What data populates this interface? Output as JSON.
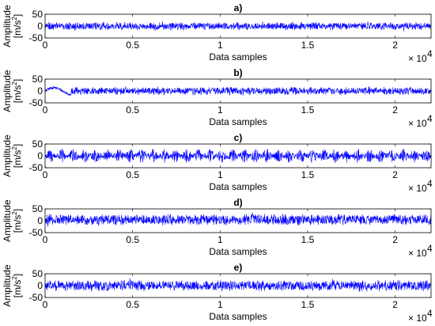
{
  "chart_data": [
    {
      "type": "line",
      "title": "a)",
      "xlabel": "Data samples",
      "ylabel": "Amplitude",
      "yunit": "[m/s",
      "yunit_exp": "2",
      "yunit_close": "]",
      "xlim": [
        0,
        22050
      ],
      "ylim": [
        -50,
        50
      ],
      "xticks": [
        "0",
        "0.5",
        "1",
        "1.5",
        "2"
      ],
      "xtick_values": [
        0,
        5000,
        10000,
        15000,
        20000
      ],
      "yticks": [
        "-50",
        "0",
        "50"
      ],
      "ytick_values": [
        -50,
        0,
        50
      ],
      "x_multiplier_base": "× 10",
      "x_multiplier_exp": "4",
      "series": [
        {
          "color": "#0000ff",
          "approx_range": [
            -18,
            18
          ],
          "description_mean": 0
        }
      ]
    },
    {
      "type": "line",
      "title": "b)",
      "xlabel": "Data samples",
      "ylabel": "Amplitude",
      "yunit": "[m/s",
      "yunit_exp": "2",
      "yunit_close": "]",
      "xlim": [
        0,
        22050
      ],
      "ylim": [
        -50,
        50
      ],
      "xticks": [
        "0",
        "0.5",
        "1",
        "1.5",
        "2"
      ],
      "xtick_values": [
        0,
        5000,
        10000,
        15000,
        20000
      ],
      "yticks": [
        "-50",
        "0",
        "50"
      ],
      "ytick_values": [
        -50,
        0,
        50
      ],
      "x_multiplier_base": "× 10",
      "x_multiplier_exp": "4",
      "series": [
        {
          "color": "#0000ff",
          "approx_range": [
            -18,
            18
          ],
          "description_mean": 0
        }
      ]
    },
    {
      "type": "line",
      "title": "c)",
      "xlabel": "Data samples",
      "ylabel": "Amplitude",
      "yunit": "[m/s",
      "yunit_exp": "2",
      "yunit_close": "]",
      "xlim": [
        0,
        22050
      ],
      "ylim": [
        -50,
        50
      ],
      "xticks": [
        "0",
        "0.5",
        "1",
        "1.5",
        "2"
      ],
      "xtick_values": [
        0,
        5000,
        10000,
        15000,
        20000
      ],
      "yticks": [
        "-50",
        "0",
        "50"
      ],
      "ytick_values": [
        -50,
        0,
        50
      ],
      "x_multiplier_base": "× 10",
      "x_multiplier_exp": "4",
      "series": [
        {
          "color": "#0000ff",
          "approx_range": [
            -30,
            30
          ],
          "description_mean": 0
        }
      ]
    },
    {
      "type": "line",
      "title": "d)",
      "xlabel": "Data samples",
      "ylabel": "Amplitude",
      "yunit": "[m/s",
      "yunit_exp": "2",
      "yunit_close": "]",
      "xlim": [
        0,
        22050
      ],
      "ylim": [
        -50,
        50
      ],
      "xticks": [
        "0",
        "0.5",
        "1",
        "1.5",
        "2"
      ],
      "xtick_values": [
        0,
        5000,
        10000,
        15000,
        20000
      ],
      "yticks": [
        "-50",
        "0",
        "50"
      ],
      "ytick_values": [
        -50,
        0,
        50
      ],
      "x_multiplier_base": "× 10",
      "x_multiplier_exp": "4",
      "series": [
        {
          "color": "#0000ff",
          "approx_range": [
            -20,
            30
          ],
          "description_mean": 5
        }
      ]
    },
    {
      "type": "line",
      "title": "e)",
      "xlabel": "Data samples",
      "ylabel": "Amplitude",
      "yunit": "[m/s",
      "yunit_exp": "2",
      "yunit_close": "]",
      "xlim": [
        0,
        22050
      ],
      "ylim": [
        -50,
        50
      ],
      "xticks": [
        "0",
        "0.5",
        "1",
        "1.5",
        "2"
      ],
      "xtick_values": [
        0,
        5000,
        10000,
        15000,
        20000
      ],
      "yticks": [
        "-50",
        "0",
        "50"
      ],
      "ytick_values": [
        -50,
        0,
        50
      ],
      "x_multiplier_base": "× 10",
      "x_multiplier_exp": "4",
      "series": [
        {
          "color": "#0000ff",
          "approx_range": [
            -25,
            25
          ],
          "description_mean": 0
        }
      ]
    }
  ]
}
